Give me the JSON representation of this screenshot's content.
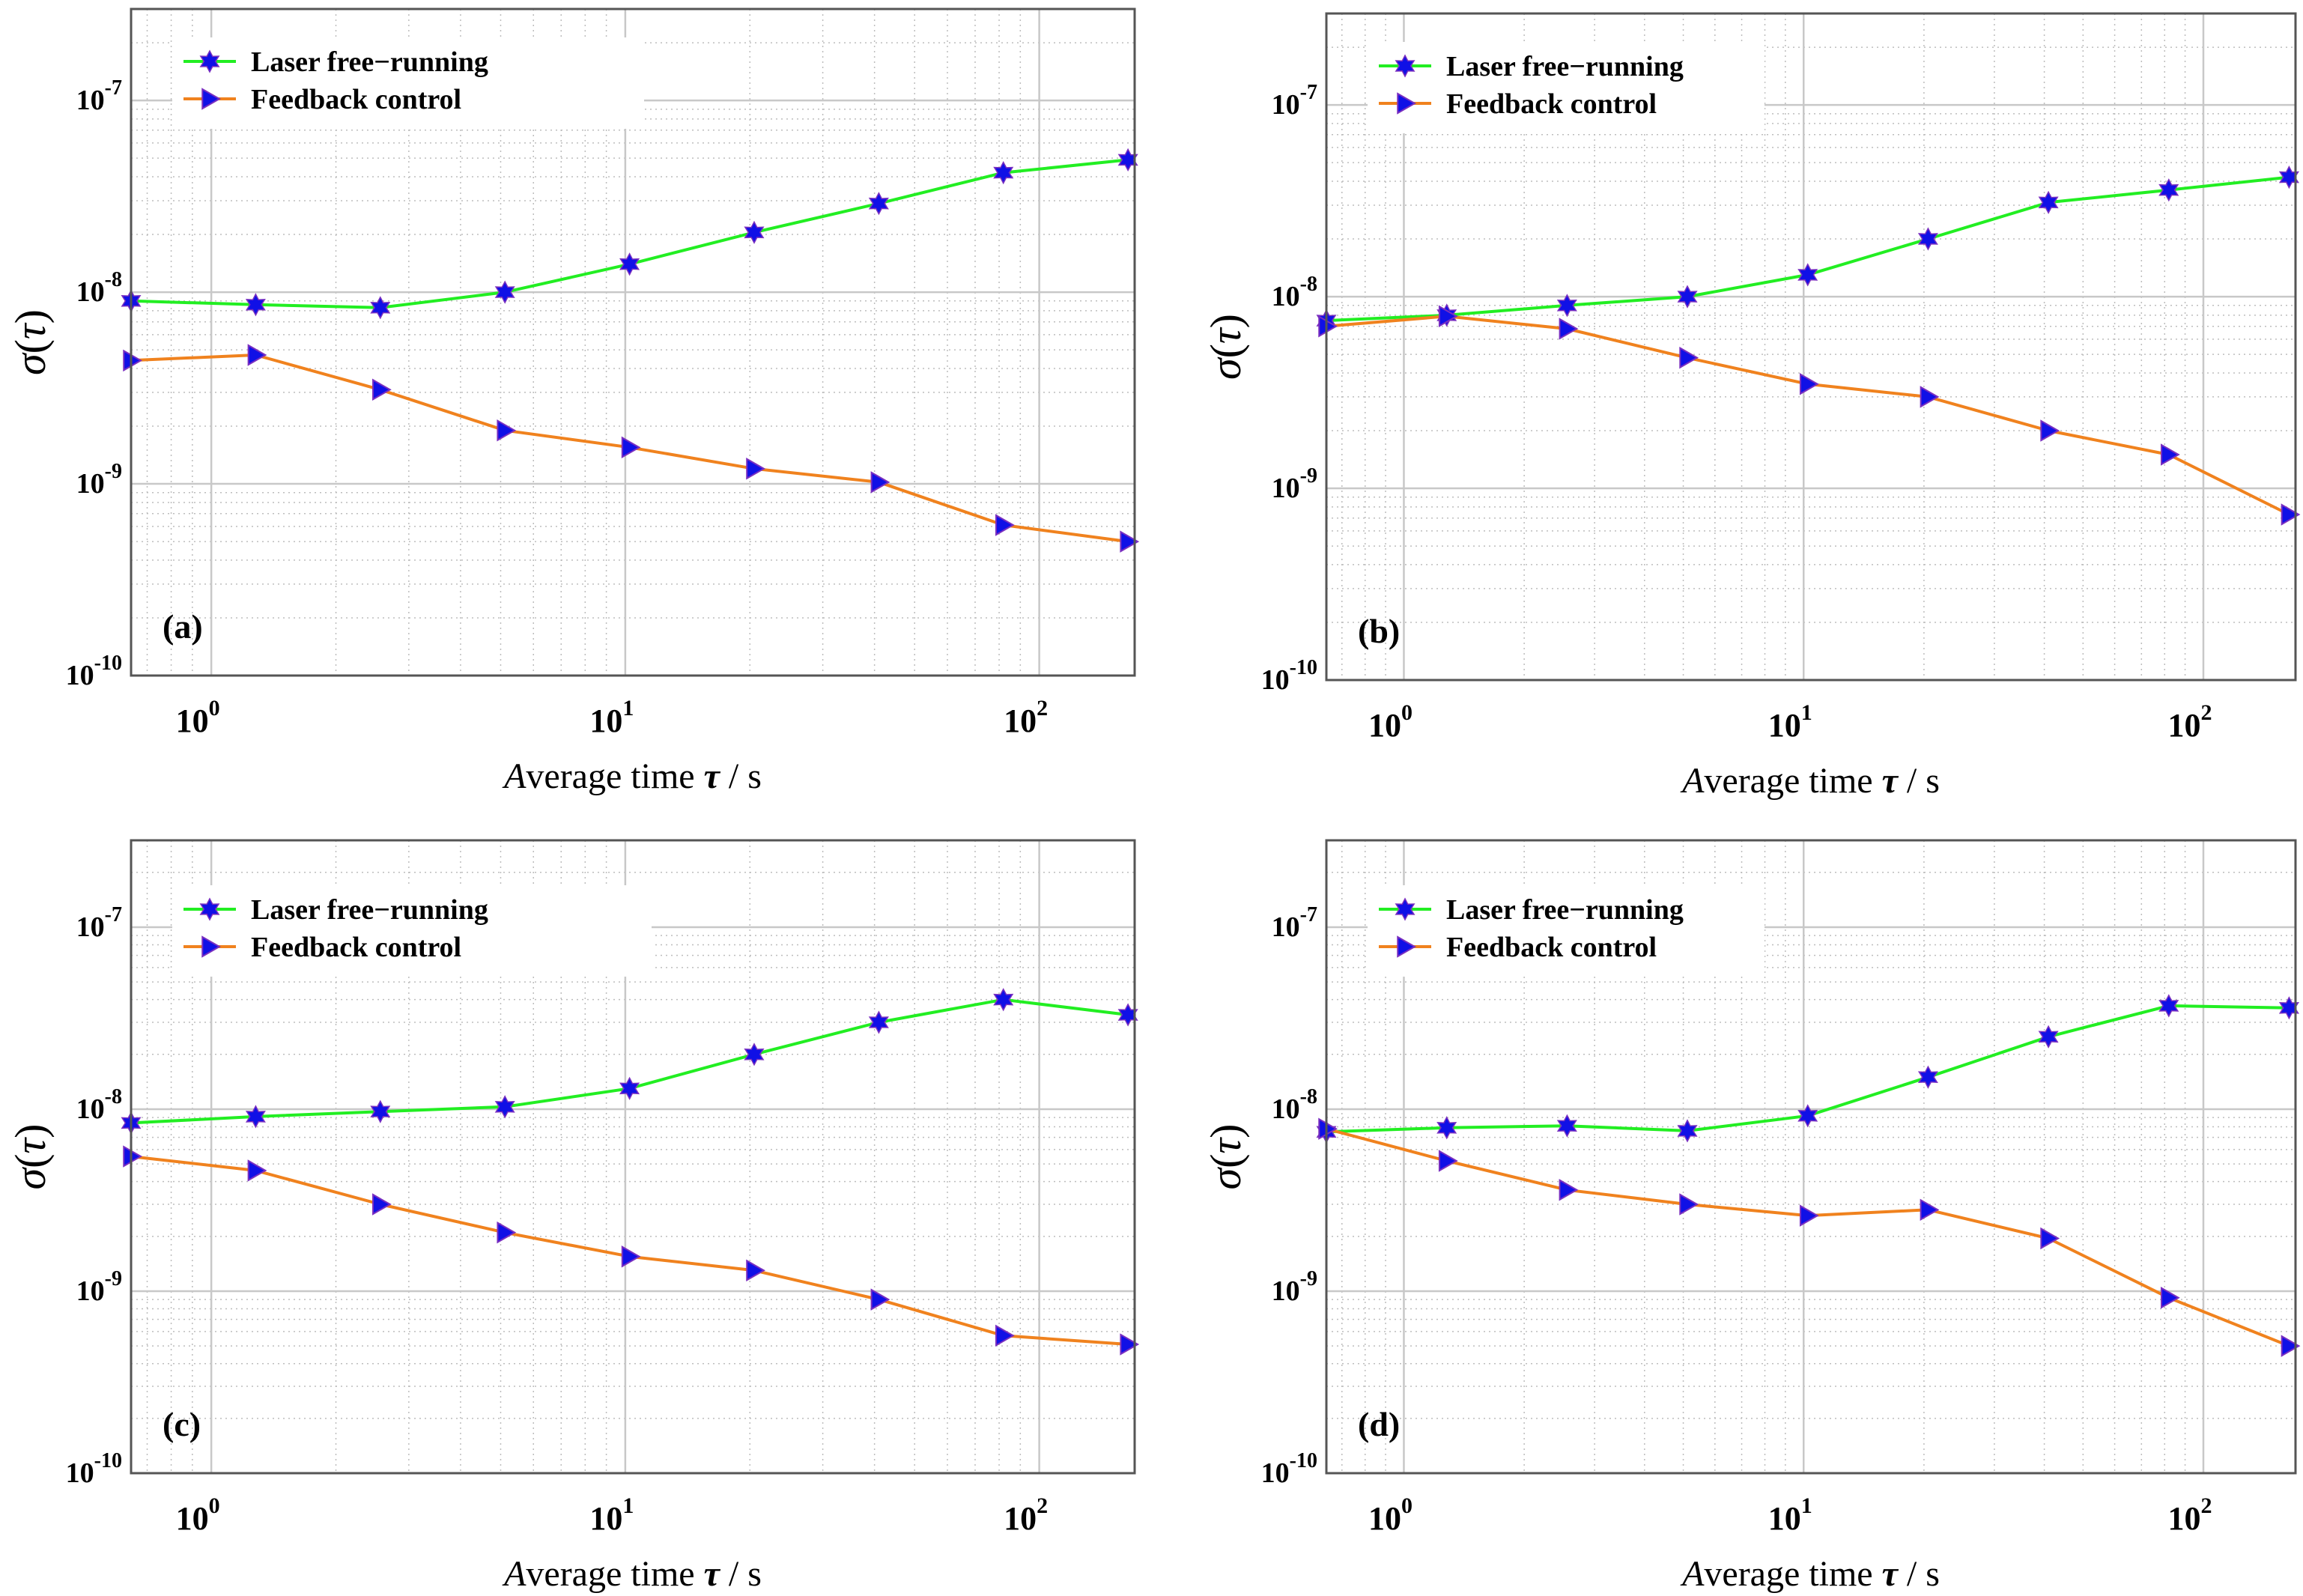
{
  "figure": {
    "colors": {
      "free_running_line": "#22ee22",
      "feedback_line": "#f0821e",
      "marker_fill": "#1010e6",
      "marker_edge": "#7a2fc0",
      "grid_major": "#c8c8c8",
      "grid_minor": "#bdbdbd"
    }
  },
  "chart_data": [
    {
      "panel": "(a)",
      "type": "line",
      "scale": "log-log",
      "xlabel": {
        "pre": "Average time ",
        "tau": "τ",
        "post": " / s"
      },
      "ylabel": {
        "sigma": "σ",
        "paren_open": "(",
        "tau": "τ",
        "paren_close": ")"
      },
      "xlim": [
        0.64,
        170
      ],
      "ylim": [
        1e-10,
        3e-07
      ],
      "x_ticks": [
        {
          "base": "10",
          "exp": "0",
          "value": 1
        },
        {
          "base": "10",
          "exp": "1",
          "value": 10
        },
        {
          "base": "10",
          "exp": "2",
          "value": 100
        }
      ],
      "y_ticks": [
        {
          "base": "10",
          "exp": "-7",
          "value": 1e-07
        },
        {
          "base": "10",
          "exp": "-8",
          "value": 1e-08
        },
        {
          "base": "10",
          "exp": "-9",
          "value": 1e-09
        },
        {
          "base": "10",
          "exp": "-10",
          "value": 1e-10
        }
      ],
      "legend": "top-left",
      "x": [
        0.64,
        1.28,
        2.56,
        5.12,
        10.24,
        20.48,
        40.96,
        81.92,
        163.84
      ],
      "series": [
        {
          "name": "Laser free−running",
          "marker": "star",
          "values": [
            9e-09,
            8.6e-09,
            8.3e-09,
            1e-08,
            1.4e-08,
            2.05e-08,
            2.9e-08,
            4.2e-08,
            4.9e-08
          ]
        },
        {
          "name": "Feedback control",
          "marker": "triangle",
          "values": [
            4.4e-09,
            4.7e-09,
            3.1e-09,
            1.9e-09,
            1.55e-09,
            1.2e-09,
            1.02e-09,
            6.1e-10,
            5e-10
          ]
        }
      ]
    },
    {
      "panel": "(b)",
      "type": "line",
      "scale": "log-log",
      "xlabel": {
        "pre": "Average time ",
        "tau": "τ",
        "post": " / s"
      },
      "ylabel": {
        "sigma": "σ",
        "paren_open": "(",
        "tau": "τ",
        "paren_close": ")"
      },
      "xlim": [
        0.64,
        170
      ],
      "ylim": [
        1e-10,
        3e-07
      ],
      "x_ticks": [
        {
          "base": "10",
          "exp": "0",
          "value": 1
        },
        {
          "base": "10",
          "exp": "1",
          "value": 10
        },
        {
          "base": "10",
          "exp": "2",
          "value": 100
        }
      ],
      "y_ticks": [
        {
          "base": "10",
          "exp": "-7",
          "value": 1e-07
        },
        {
          "base": "10",
          "exp": "-8",
          "value": 1e-08
        },
        {
          "base": "10",
          "exp": "-9",
          "value": 1e-09
        },
        {
          "base": "10",
          "exp": "-10",
          "value": 1e-10
        }
      ],
      "legend": "top-left",
      "x": [
        0.64,
        1.28,
        2.56,
        5.12,
        10.24,
        20.48,
        40.96,
        81.92,
        163.84
      ],
      "series": [
        {
          "name": "Laser free−running",
          "marker": "star",
          "values": [
            7.5e-09,
            8e-09,
            9e-09,
            1e-08,
            1.3e-08,
            2e-08,
            3.1e-08,
            3.6e-08,
            4.2e-08
          ]
        },
        {
          "name": "Feedback control",
          "marker": "triangle",
          "values": [
            7e-09,
            7.9e-09,
            6.8e-09,
            4.8e-09,
            3.5e-09,
            3e-09,
            2e-09,
            1.5e-09,
            7.3e-10
          ]
        }
      ]
    },
    {
      "panel": "(c)",
      "type": "line",
      "scale": "log-log",
      "xlabel": {
        "pre": "Average time ",
        "tau": "τ",
        "post": " / s"
      },
      "ylabel": {
        "sigma": "σ",
        "paren_open": "(",
        "tau": "τ",
        "paren_close": ")"
      },
      "xlim": [
        0.64,
        170
      ],
      "ylim": [
        1e-10,
        3e-07
      ],
      "x_ticks": [
        {
          "base": "10",
          "exp": "0",
          "value": 1
        },
        {
          "base": "10",
          "exp": "1",
          "value": 10
        },
        {
          "base": "10",
          "exp": "2",
          "value": 100
        }
      ],
      "y_ticks": [
        {
          "base": "10",
          "exp": "-7",
          "value": 1e-07
        },
        {
          "base": "10",
          "exp": "-8",
          "value": 1e-08
        },
        {
          "base": "10",
          "exp": "-9",
          "value": 1e-09
        },
        {
          "base": "10",
          "exp": "-10",
          "value": 1e-10
        }
      ],
      "legend": "top-left",
      "x": [
        0.64,
        1.28,
        2.56,
        5.12,
        10.24,
        20.48,
        40.96,
        81.92,
        163.84
      ],
      "series": [
        {
          "name": "Laser free−running",
          "marker": "star",
          "values": [
            8.4e-09,
            9.1e-09,
            9.7e-09,
            1.03e-08,
            1.3e-08,
            2e-08,
            3e-08,
            4e-08,
            3.3e-08
          ]
        },
        {
          "name": "Feedback control",
          "marker": "triangle",
          "values": [
            5.5e-09,
            4.6e-09,
            3e-09,
            2.1e-09,
            1.55e-09,
            1.3e-09,
            9e-10,
            5.7e-10,
            5.1e-10
          ]
        }
      ]
    },
    {
      "panel": "(d)",
      "type": "line",
      "scale": "log-log",
      "xlabel": {
        "pre": "Average time ",
        "tau": "τ",
        "post": " / s"
      },
      "ylabel": {
        "sigma": "σ",
        "paren_open": "(",
        "tau": "τ",
        "paren_close": ")"
      },
      "xlim": [
        0.64,
        170
      ],
      "ylim": [
        1e-10,
        3e-07
      ],
      "x_ticks": [
        {
          "base": "10",
          "exp": "0",
          "value": 1
        },
        {
          "base": "10",
          "exp": "1",
          "value": 10
        },
        {
          "base": "10",
          "exp": "2",
          "value": 100
        }
      ],
      "y_ticks": [
        {
          "base": "10",
          "exp": "-7",
          "value": 1e-07
        },
        {
          "base": "10",
          "exp": "-8",
          "value": 1e-08
        },
        {
          "base": "10",
          "exp": "-9",
          "value": 1e-09
        },
        {
          "base": "10",
          "exp": "-10",
          "value": 1e-10
        }
      ],
      "legend": "top-left",
      "x": [
        0.64,
        1.28,
        2.56,
        5.12,
        10.24,
        20.48,
        40.96,
        81.92,
        163.84
      ],
      "series": [
        {
          "name": "Laser free−running",
          "marker": "star",
          "values": [
            7.5e-09,
            7.9e-09,
            8.1e-09,
            7.6e-09,
            9.2e-09,
            1.5e-08,
            2.5e-08,
            3.7e-08,
            3.6e-08
          ]
        },
        {
          "name": "Feedback control",
          "marker": "triangle",
          "values": [
            7.8e-09,
            5.2e-09,
            3.6e-09,
            3e-09,
            2.6e-09,
            2.8e-09,
            1.95e-09,
            9.2e-10,
            5e-10
          ]
        }
      ]
    }
  ]
}
